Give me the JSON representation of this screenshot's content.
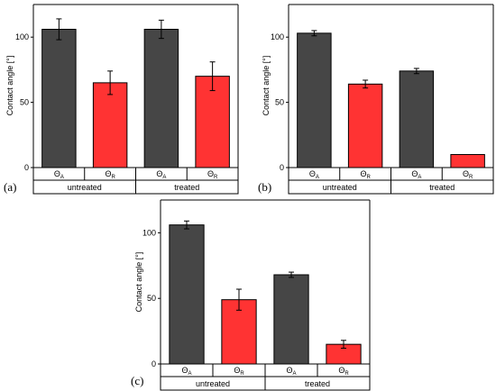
{
  "colors": {
    "theta_a": "#464646",
    "theta_r": "#ff3333",
    "axis": "#000000"
  },
  "chart_data": [
    {
      "type": "bar",
      "panel_label": "(a)",
      "ylabel": "Contact angle [°]",
      "ylim": [
        0,
        125
      ],
      "yticks": [
        0,
        50,
        100
      ],
      "groups": [
        "untreated",
        "treated"
      ],
      "categories": [
        {
          "sym": "Θ",
          "sub": "A"
        },
        {
          "sym": "Θ",
          "sub": "R"
        },
        {
          "sym": "Θ",
          "sub": "A"
        },
        {
          "sym": "Θ",
          "sub": "R"
        }
      ],
      "values": [
        106,
        65,
        106,
        70
      ],
      "errors": [
        8,
        9,
        7,
        11
      ]
    },
    {
      "type": "bar",
      "panel_label": "(b)",
      "ylabel": "Contact angle [°]",
      "ylim": [
        0,
        125
      ],
      "yticks": [
        0,
        50,
        100
      ],
      "groups": [
        "untreated",
        "treated"
      ],
      "categories": [
        {
          "sym": "Θ",
          "sub": "A"
        },
        {
          "sym": "Θ",
          "sub": "R"
        },
        {
          "sym": "Θ",
          "sub": "A"
        },
        {
          "sym": "Θ",
          "sub": "R"
        }
      ],
      "values": [
        103,
        64,
        74,
        10
      ],
      "errors": [
        2,
        3,
        2,
        0
      ]
    },
    {
      "type": "bar",
      "panel_label": "(c)",
      "ylabel": "Contact angle [°]",
      "ylim": [
        0,
        125
      ],
      "yticks": [
        0,
        50,
        100
      ],
      "groups": [
        "untreated",
        "treated"
      ],
      "categories": [
        {
          "sym": "Θ",
          "sub": "A"
        },
        {
          "sym": "Θ",
          "sub": "R"
        },
        {
          "sym": "Θ",
          "sub": "A"
        },
        {
          "sym": "Θ",
          "sub": "R"
        }
      ],
      "values": [
        106,
        49,
        68,
        15
      ],
      "errors": [
        3,
        8,
        2,
        3
      ]
    }
  ]
}
